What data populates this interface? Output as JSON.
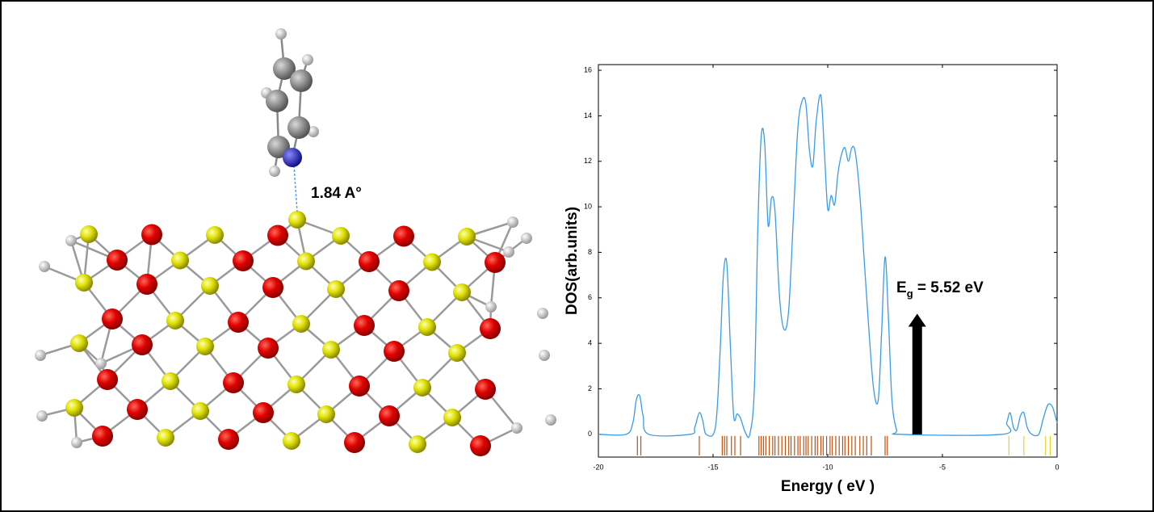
{
  "distance_label": "1.84 A°",
  "chart_data": {
    "type": "line",
    "xlabel": "Energy ( eV )",
    "ylabel": "DOS(arb.units)",
    "xlim": [
      -20,
      0
    ],
    "ylim": [
      -1,
      16.25
    ],
    "xticks": [
      -20,
      -15,
      -10,
      -5,
      0
    ],
    "yticks": [
      0,
      2,
      4,
      6,
      8,
      10,
      12,
      14,
      16
    ],
    "grid": false,
    "x": [
      -20,
      -18.8,
      -18.5,
      -18.35,
      -18.2,
      -18.05,
      -17.8,
      -16,
      -15.8,
      -15.6,
      -15.45,
      -15.3,
      -14.9,
      -14.7,
      -14.55,
      -14.4,
      -14.25,
      -14.1,
      -13.95,
      -13.8,
      -13.6,
      -13.4,
      -13.2,
      -13.05,
      -12.9,
      -12.75,
      -12.6,
      -12.45,
      -12.3,
      -12.1,
      -11.9,
      -11.7,
      -11.5,
      -11.3,
      -11.1,
      -10.95,
      -10.8,
      -10.65,
      -10.5,
      -10.3,
      -10.15,
      -10.0,
      -9.85,
      -9.7,
      -9.55,
      -9.4,
      -9.25,
      -9.1,
      -8.95,
      -8.8,
      -8.6,
      -8.4,
      -8.2,
      -8.0,
      -7.8,
      -7.65,
      -7.5,
      -7.35,
      -7.2,
      -7.0,
      -6.8,
      -2.4,
      -2.2,
      -2.05,
      -1.9,
      -1.75,
      -1.6,
      -1.45,
      -1.3,
      -1.1,
      -0.8,
      -0.6,
      -0.4,
      -0.2,
      0
    ],
    "series": [
      {
        "color": "#3a9ce8",
        "values": [
          0,
          0,
          0.5,
          1.5,
          1.7,
          0.8,
          0,
          0,
          0.3,
          0.95,
          0.6,
          0,
          0.3,
          3.5,
          7.0,
          7.5,
          4,
          0.8,
          0.9,
          0.7,
          0.1,
          0,
          2,
          9,
          13.1,
          12.8,
          9.2,
          10.4,
          9.8,
          6,
          4.6,
          5.5,
          9.5,
          13.5,
          14.7,
          14.5,
          12.5,
          11.8,
          13.8,
          14.9,
          12.5,
          9.9,
          10.5,
          10.1,
          11.5,
          12.3,
          12.6,
          12.0,
          12.6,
          12.4,
          10.5,
          7.5,
          4.5,
          2.0,
          1.5,
          4.5,
          7.8,
          5,
          1.5,
          0.2,
          0,
          0,
          0.5,
          0.95,
          0.3,
          0.2,
          0.8,
          0.95,
          0.3,
          0,
          0,
          0.7,
          1.3,
          1.2,
          0.5
        ]
      }
    ],
    "levels": {
      "occupied": {
        "color": "#c0500f",
        "x": [
          -18.3,
          -18.15,
          -15.6,
          -14.6,
          -14.5,
          -14.4,
          -14.2,
          -14.05,
          -13.8,
          -13.0,
          -12.9,
          -12.8,
          -12.7,
          -12.55,
          -12.4,
          -12.3,
          -12.15,
          -12.0,
          -11.85,
          -11.7,
          -11.6,
          -11.45,
          -11.3,
          -11.2,
          -11.05,
          -10.95,
          -10.85,
          -10.7,
          -10.55,
          -10.45,
          -10.3,
          -10.2,
          -10.05,
          -9.9,
          -9.8,
          -9.65,
          -9.5,
          -9.35,
          -9.25,
          -9.1,
          -8.95,
          -8.8,
          -8.6,
          -8.45,
          -8.3,
          -8.1,
          -7.5,
          -7.4
        ]
      },
      "unoccupied": {
        "color": "#e8d420",
        "x": [
          -2.1,
          -1.45,
          -0.5,
          -0.3
        ]
      }
    },
    "gap_annotation": {
      "symbol": "E",
      "subscript": "g",
      "text": " = 5.52 eV",
      "x": -6.1,
      "y": [
        0,
        5.3
      ]
    }
  }
}
